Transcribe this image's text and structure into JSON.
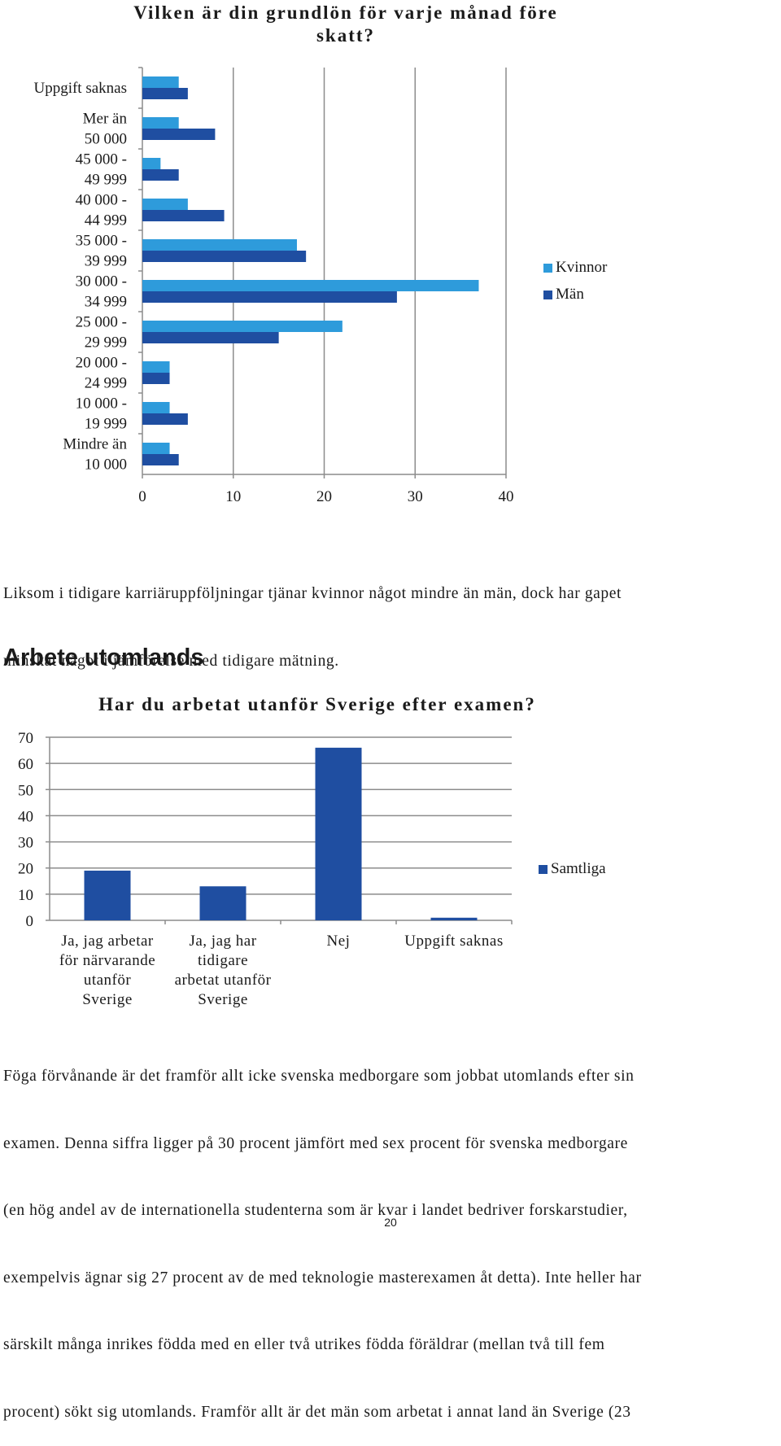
{
  "chart1": {
    "title_line1": "Vilken är din grundlön för varje månad före",
    "title_line2": "skatt?",
    "chart_data": {
      "type": "bar",
      "orientation": "horizontal",
      "categories": [
        "Uppgift saknas",
        "Mer än 50 000",
        "45 000 - 49 999",
        "40 000 - 44 999",
        "35 000 - 39 999",
        "30 000 - 34 999",
        "25 000 - 29 999",
        "20 000 - 24 999",
        "10 000 - 19 999",
        "Mindre än 10 000"
      ],
      "category_lines": [
        [
          "Uppgift saknas"
        ],
        [
          "Mer än",
          "50 000"
        ],
        [
          "45 000 -",
          "49 999"
        ],
        [
          "40 000 -",
          "44 999"
        ],
        [
          "35 000 -",
          "39 999"
        ],
        [
          "30 000 -",
          "34 999"
        ],
        [
          "25 000 -",
          "29 999"
        ],
        [
          "20 000 -",
          "24 999"
        ],
        [
          "10 000 -",
          "19 999"
        ],
        [
          "Mindre än",
          "10 000"
        ]
      ],
      "series": [
        {
          "name": "Kvinnor",
          "color": "#2e9bdb",
          "values": [
            4,
            4,
            2,
            5,
            17,
            37,
            22,
            3,
            3,
            3
          ]
        },
        {
          "name": "Män",
          "color": "#1f4ea1",
          "values": [
            5,
            8,
            4,
            9,
            18,
            28,
            15,
            3,
            5,
            4
          ]
        }
      ],
      "xlim": [
        0,
        40
      ],
      "xticks": [
        "0",
        "10",
        "20",
        "30",
        "40"
      ],
      "grid": true,
      "legend_position": "right"
    }
  },
  "paragraph1": [
    "Liksom i tidigare karriäruppföljningar tjänar kvinnor något mindre än män, dock har gapet",
    "minskat något i jämförelse med tidigare mätning."
  ],
  "section_heading": "Arbete utomlands",
  "chart2": {
    "title": "Har du arbetat utanför Sverige efter examen?",
    "chart_data": {
      "type": "bar",
      "categories": [
        "Ja, jag arbetar för närvarande utanför Sverige",
        "Ja, jag har tidigare arbetat utanför Sverige",
        "Nej",
        "Uppgift saknas"
      ],
      "category_lines": [
        [
          "Ja, jag arbetar",
          "för närvarande",
          "utanför",
          "Sverige"
        ],
        [
          "Ja, jag har",
          "tidigare",
          "arbetat utanför",
          "Sverige"
        ],
        [
          "Nej"
        ],
        [
          "Uppgift saknas"
        ]
      ],
      "series": [
        {
          "name": "Samtliga",
          "color": "#1f4ea1",
          "values": [
            19,
            13,
            66,
            1
          ]
        }
      ],
      "ylim": [
        0,
        70
      ],
      "yticks": [
        "0",
        "10",
        "20",
        "30",
        "40",
        "50",
        "60",
        "70"
      ],
      "grid": true,
      "legend_position": "right"
    }
  },
  "paragraph2": [
    "Föga förvånande är det framför allt icke svenska medborgare som jobbat utomlands efter sin",
    "examen. Denna siffra ligger på 30 procent jämfört med sex procent för svenska medborgare",
    "(en hög andel av de internationella studenterna som är kvar i landet bedriver forskarstudier,",
    "exempelvis ägnar sig 27 procent av de med teknologie masterexamen åt detta). Inte heller har",
    "särskilt många inrikes födda med en eller två utrikes födda föräldrar (mellan två till fem",
    "procent) sökt sig utomlands. Framför allt är det män som arbetat i annat land än Sverige (23"
  ],
  "page_number": "20"
}
